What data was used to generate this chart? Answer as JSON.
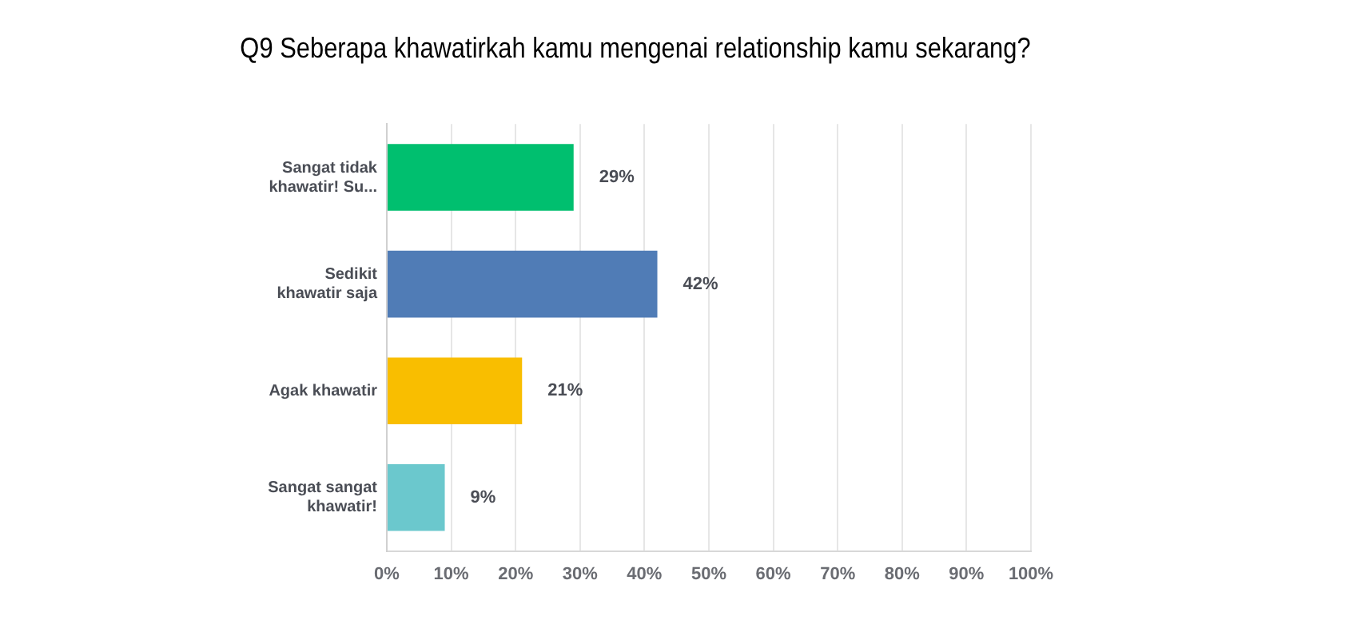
{
  "chart_data": {
    "type": "bar",
    "orientation": "horizontal",
    "title": "Q9 Seberapa khawatirkah kamu mengenai relationship kamu sekarang?",
    "categories": [
      "Sangat tidak\nkhawatir! Su...",
      "Sedikit\nkhawatir saja",
      "Agak khawatir",
      "Sangat sangat\nkhawatir!"
    ],
    "values": [
      29,
      42,
      21,
      9
    ],
    "colors": [
      "#00bf6f",
      "#507cb6",
      "#f9be00",
      "#6bc8cd"
    ],
    "value_labels": [
      "29%",
      "42%",
      "21%",
      "9%"
    ],
    "xlim": [
      0,
      100
    ],
    "xticks": [
      {
        "value": 0,
        "label": "0%"
      },
      {
        "value": 10,
        "label": "10%"
      },
      {
        "value": 20,
        "label": "20%"
      },
      {
        "value": 30,
        "label": "30%"
      },
      {
        "value": 40,
        "label": "40%"
      },
      {
        "value": 50,
        "label": "50%"
      },
      {
        "value": 60,
        "label": "60%"
      },
      {
        "value": 70,
        "label": "70%"
      },
      {
        "value": 80,
        "label": "80%"
      },
      {
        "value": 90,
        "label": "90%"
      },
      {
        "value": 100,
        "label": "100%"
      }
    ],
    "grid": "x"
  }
}
